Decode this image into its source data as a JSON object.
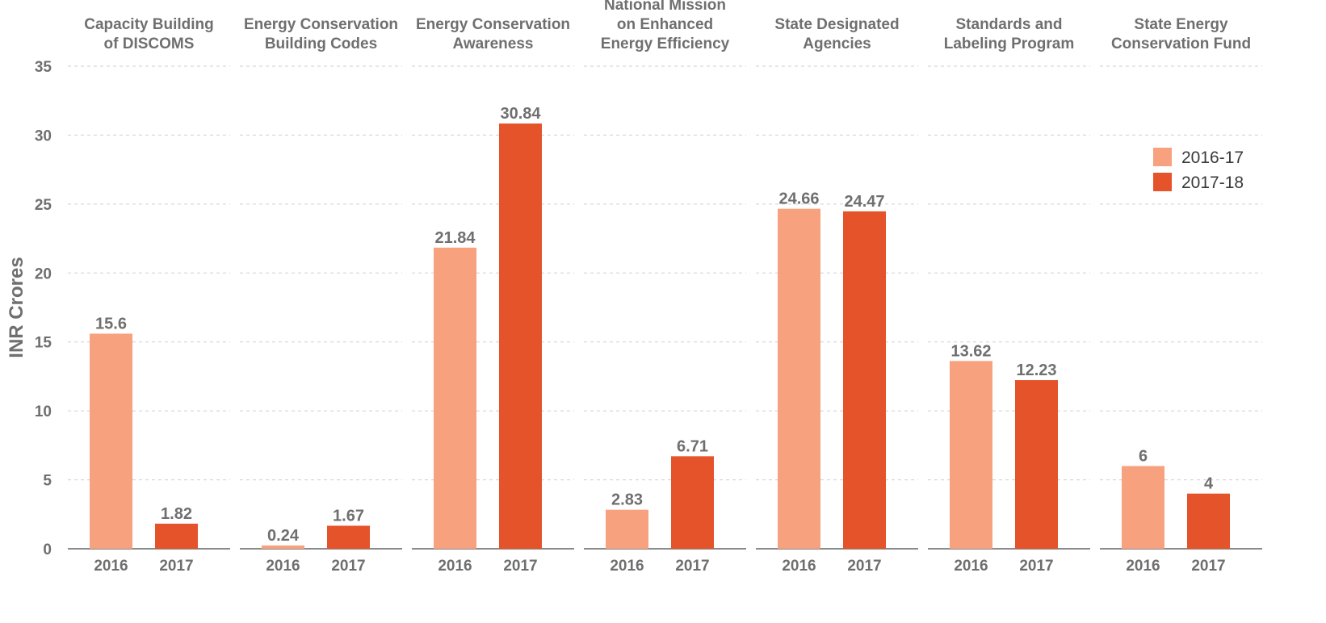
{
  "chart_data": {
    "type": "bar",
    "ylabel": "INR Crores",
    "ylim": [
      0,
      35
    ],
    "yticks": [
      0,
      5,
      10,
      15,
      20,
      25,
      30,
      35
    ],
    "grid": true,
    "legend_position": "right",
    "legend": [
      {
        "name": "2016-17",
        "color": "#f7a17e"
      },
      {
        "name": "2017-18",
        "color": "#e5532b"
      }
    ],
    "panels": [
      {
        "title": [
          "Capacity Building",
          "of DISCOMS"
        ],
        "categories": [
          "2016",
          "2017"
        ],
        "values": [
          15.6,
          1.82
        ],
        "labels": [
          "15.6",
          "1.82"
        ]
      },
      {
        "title": [
          "Energy Conservation",
          "Building Codes"
        ],
        "categories": [
          "2016",
          "2017"
        ],
        "values": [
          0.24,
          1.67
        ],
        "labels": [
          "0.24",
          "1.67"
        ]
      },
      {
        "title": [
          "Energy Conservation",
          "Awareness"
        ],
        "categories": [
          "2016",
          "2017"
        ],
        "values": [
          21.84,
          30.84
        ],
        "labels": [
          "21.84",
          "30.84"
        ]
      },
      {
        "title": [
          "National Mission",
          "on Enhanced",
          "Energy Efficiency"
        ],
        "categories": [
          "2016",
          "2017"
        ],
        "values": [
          2.83,
          6.71
        ],
        "labels": [
          "2.83",
          "6.71"
        ]
      },
      {
        "title": [
          "State Designated",
          "Agencies"
        ],
        "categories": [
          "2016",
          "2017"
        ],
        "values": [
          24.66,
          24.47
        ],
        "labels": [
          "24.66",
          "24.47"
        ]
      },
      {
        "title": [
          "Standards and",
          "Labeling Program"
        ],
        "categories": [
          "2016",
          "2017"
        ],
        "values": [
          13.62,
          12.23
        ],
        "labels": [
          "13.62",
          "12.23"
        ]
      },
      {
        "title": [
          "State Energy",
          "Conservation Fund"
        ],
        "categories": [
          "2016",
          "2017"
        ],
        "values": [
          6,
          4
        ],
        "labels": [
          "6",
          "4"
        ]
      }
    ]
  }
}
